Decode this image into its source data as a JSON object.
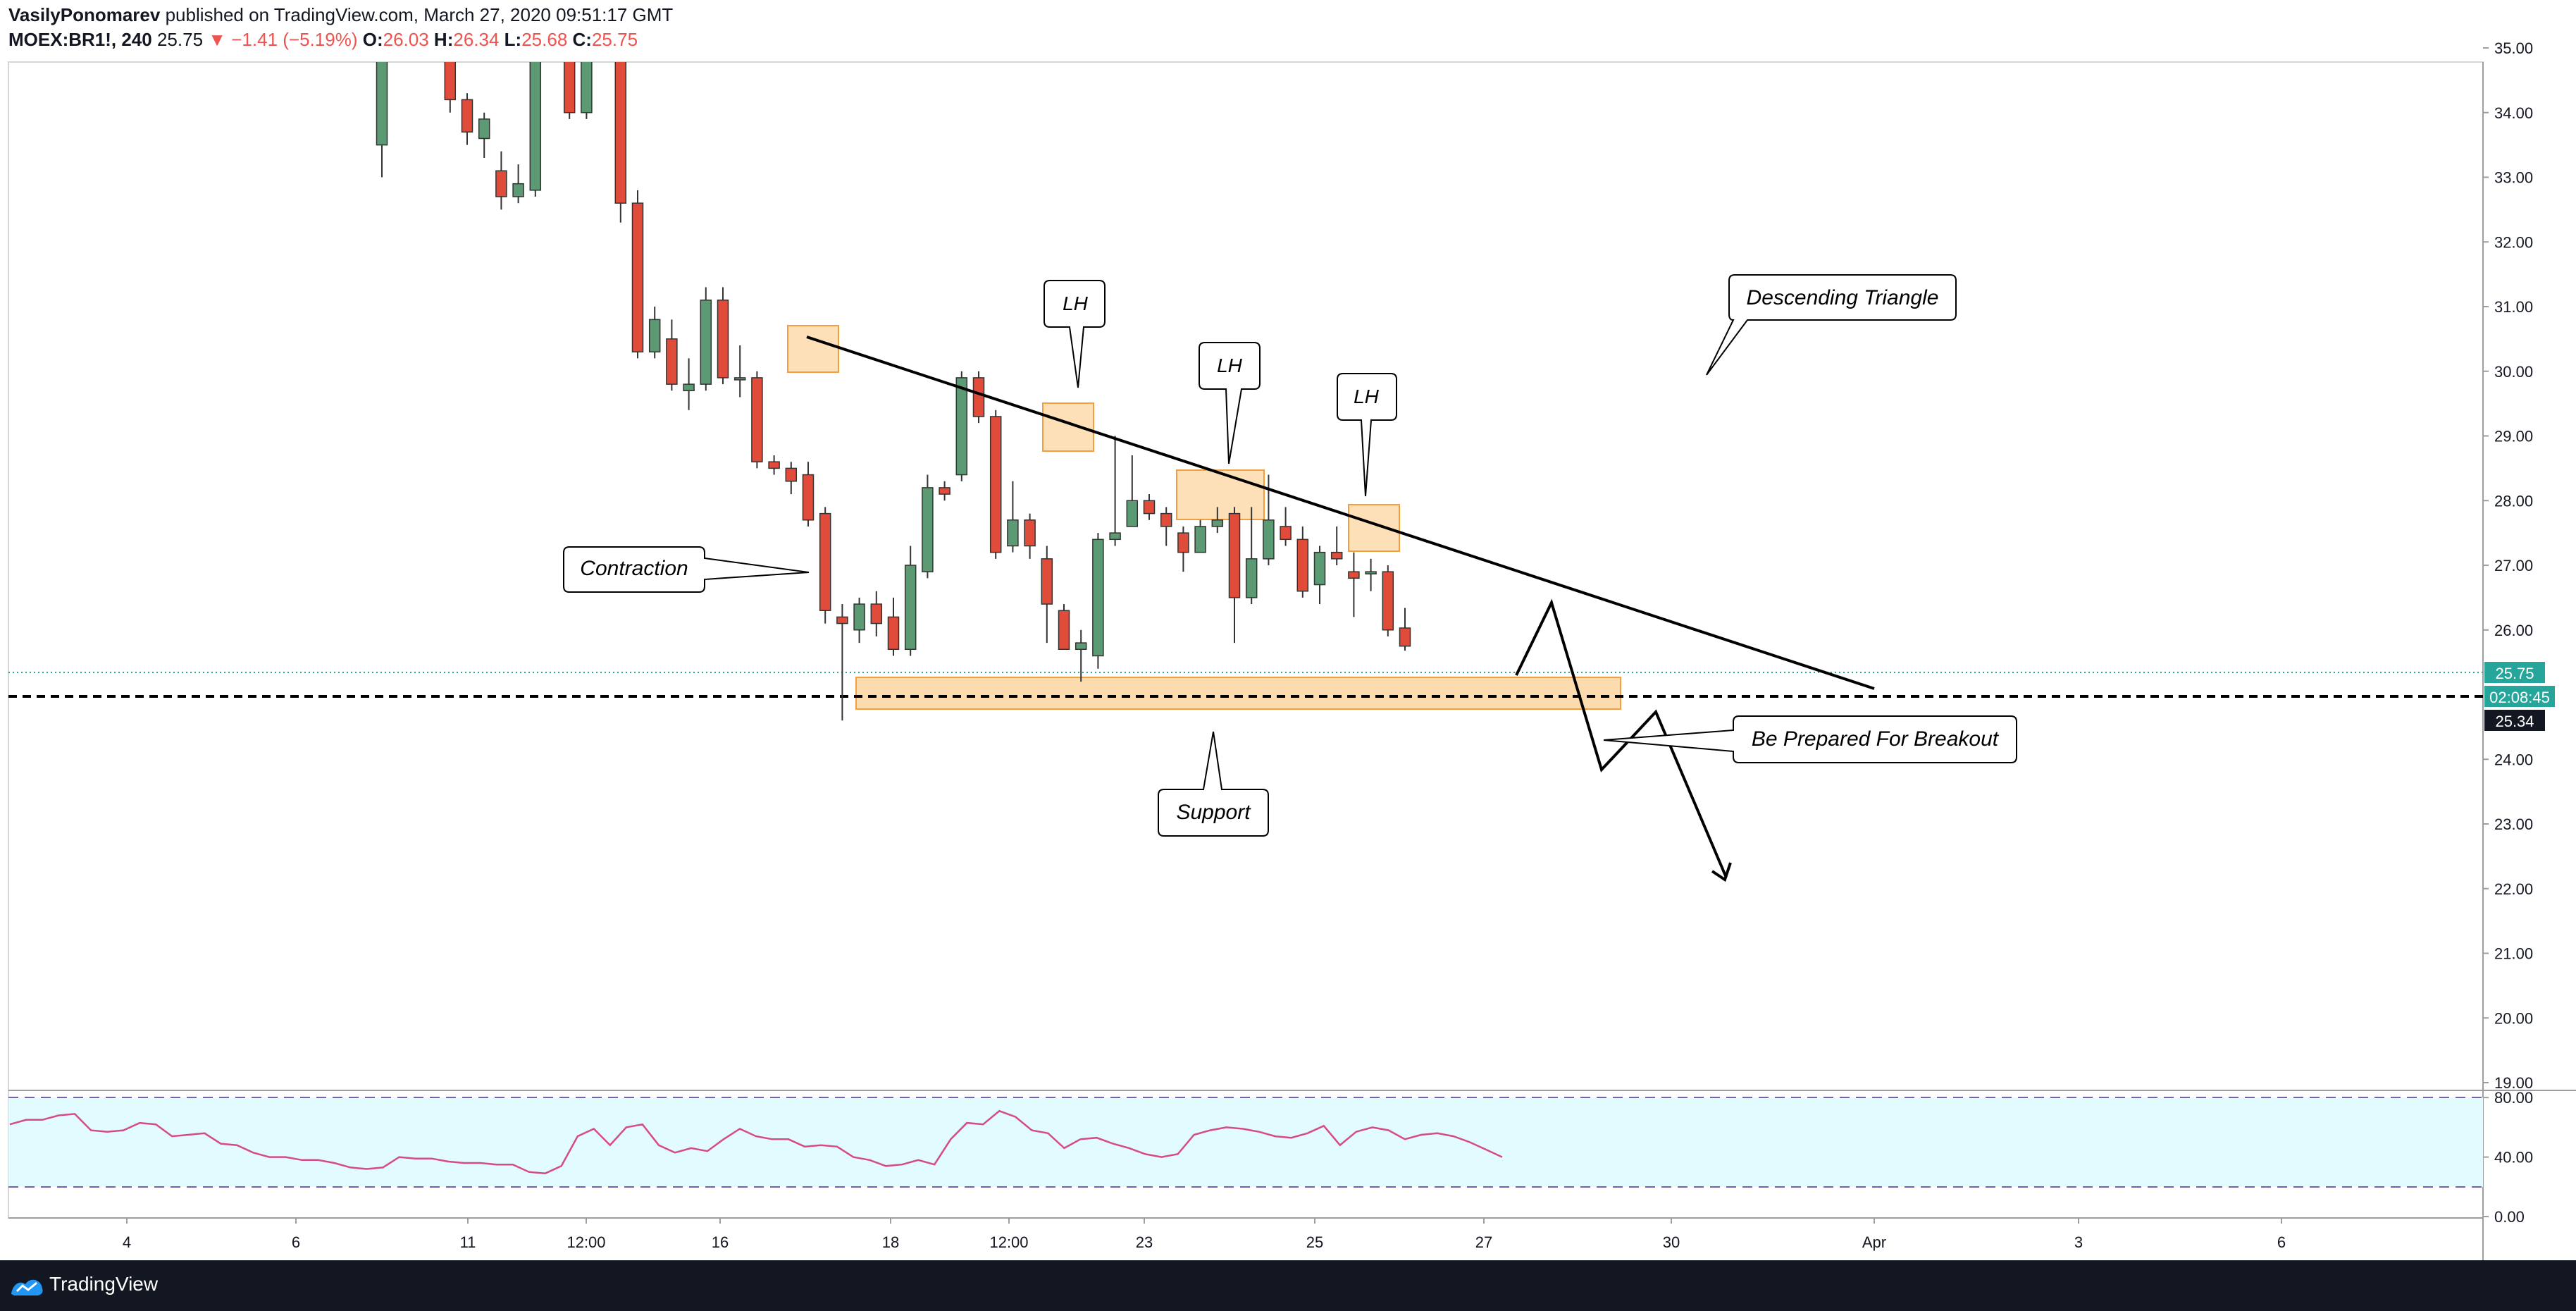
{
  "header": {
    "author": "VasilyPonomarev",
    "published": "published on TradingView.com, March 27, 2020 09:51:17 GMT",
    "symbol": "MOEX:BR1!, 240",
    "last": "25.75",
    "change_arrow": "▼",
    "change": "−1.41 (−5.19%)",
    "o_label": "O:",
    "o_value": "26.03",
    "h_label": "H:",
    "h_value": "26.34",
    "l_label": "L:",
    "l_value": "25.68",
    "c_label": "C:",
    "c_value": "25.75"
  },
  "footer": {
    "brand": "TradingView"
  },
  "colors": {
    "up": "#5b9a73",
    "down": "#e04b3a",
    "zone_fill": "#fcd6a0",
    "zone_stroke": "#f0a040",
    "rsi_line": "#d64a8a",
    "rsi_band": "#e1fbff",
    "price_tag": "#26a69a",
    "current_tag": "#131722"
  },
  "chart_data": {
    "type": "candlestick",
    "y_range": [
      19.0,
      35.7
    ],
    "y_ticks": [
      "35.00",
      "34.00",
      "33.00",
      "32.00",
      "31.00",
      "30.00",
      "29.00",
      "28.00",
      "27.00",
      "26.00",
      "24.00",
      "23.00",
      "22.00",
      "21.00",
      "20.00",
      "19.00"
    ],
    "x_labels": [
      "4",
      "6",
      "11",
      "12:00",
      "16",
      "18",
      "12:00",
      "23",
      "25",
      "27",
      "30",
      "Apr",
      "3",
      "6"
    ],
    "candles": [
      [
        33.5,
        35.9,
        36.0,
        33.0
      ],
      [
        35.9,
        35.6,
        36.0,
        35.0
      ],
      [
        35.6,
        35.8,
        36.0,
        35.4
      ],
      [
        35.8,
        35.4,
        36.0,
        35.3
      ],
      [
        35.4,
        34.2,
        35.7,
        34.0
      ],
      [
        34.2,
        33.7,
        34.3,
        33.5
      ],
      [
        33.6,
        33.9,
        34.0,
        33.3
      ],
      [
        33.1,
        32.7,
        33.4,
        32.5
      ],
      [
        32.7,
        32.9,
        33.2,
        32.6
      ],
      [
        32.8,
        35.3,
        35.5,
        32.7
      ],
      [
        35.0,
        35.3,
        35.6,
        34.8
      ],
      [
        35.3,
        34.0,
        35.9,
        33.9
      ],
      [
        34.0,
        35.0,
        35.3,
        33.9
      ],
      [
        35.1,
        35.0,
        35.3,
        34.8
      ],
      [
        35.0,
        32.6,
        35.1,
        32.3
      ],
      [
        32.6,
        30.3,
        32.8,
        30.2
      ],
      [
        30.3,
        30.8,
        31.0,
        30.2
      ],
      [
        30.5,
        29.8,
        30.8,
        29.7
      ],
      [
        29.7,
        29.8,
        30.2,
        29.4
      ],
      [
        29.8,
        31.1,
        31.3,
        29.7
      ],
      [
        31.1,
        29.9,
        31.3,
        29.8
      ],
      [
        29.9,
        29.9,
        30.4,
        29.6
      ],
      [
        29.9,
        28.6,
        30.0,
        28.5
      ],
      [
        28.6,
        28.5,
        28.7,
        28.4
      ],
      [
        28.5,
        28.3,
        28.6,
        28.1
      ],
      [
        28.4,
        27.7,
        28.6,
        27.6
      ],
      [
        27.8,
        26.3,
        27.9,
        26.1
      ],
      [
        26.2,
        26.1,
        26.4,
        24.6
      ],
      [
        26.0,
        26.4,
        26.5,
        25.8
      ],
      [
        26.4,
        26.1,
        26.6,
        25.9
      ],
      [
        26.2,
        25.7,
        26.5,
        25.6
      ],
      [
        25.7,
        27.0,
        27.3,
        25.6
      ],
      [
        26.9,
        28.2,
        28.4,
        26.8
      ],
      [
        28.2,
        28.1,
        28.3,
        28.0
      ],
      [
        28.4,
        29.9,
        30.0,
        28.3
      ],
      [
        29.9,
        29.3,
        30.0,
        29.2
      ],
      [
        29.3,
        27.2,
        29.4,
        27.1
      ],
      [
        27.3,
        27.7,
        28.3,
        27.2
      ],
      [
        27.7,
        27.3,
        27.8,
        27.1
      ],
      [
        27.1,
        26.4,
        27.3,
        25.8
      ],
      [
        26.3,
        25.7,
        26.4,
        25.7
      ],
      [
        25.7,
        25.8,
        26.0,
        25.2
      ],
      [
        25.6,
        27.4,
        27.5,
        25.4
      ],
      [
        27.4,
        27.5,
        29.0,
        27.3
      ],
      [
        27.6,
        28.0,
        28.7,
        27.6
      ],
      [
        28.0,
        27.8,
        28.1,
        27.7
      ],
      [
        27.8,
        27.6,
        27.9,
        27.3
      ],
      [
        27.5,
        27.2,
        27.6,
        26.9
      ],
      [
        27.2,
        27.6,
        27.7,
        27.2
      ],
      [
        27.6,
        27.7,
        27.9,
        27.5
      ],
      [
        27.8,
        26.5,
        27.9,
        25.8
      ],
      [
        26.5,
        27.1,
        27.9,
        26.4
      ],
      [
        27.1,
        27.7,
        28.4,
        27.0
      ],
      [
        27.6,
        27.4,
        27.9,
        27.3
      ],
      [
        27.4,
        26.6,
        27.6,
        26.5
      ],
      [
        26.7,
        27.2,
        27.3,
        26.4
      ],
      [
        27.2,
        27.1,
        27.6,
        27.0
      ],
      [
        26.9,
        26.8,
        27.2,
        26.2
      ],
      [
        26.9,
        26.9,
        27.1,
        26.6
      ],
      [
        26.9,
        26.0,
        27.0,
        25.9
      ],
      [
        26.03,
        25.75,
        26.34,
        25.68
      ]
    ],
    "last_price": "25.75",
    "countdown": "02:08:45",
    "level_price": "25.34",
    "annotations": {
      "lh": [
        "LH",
        "LH",
        "LH"
      ],
      "descending_triangle": "Descending Triangle",
      "contraction": "Contraction",
      "support": "Support",
      "breakout": "Be Prepared For Breakout"
    },
    "rsi": {
      "y_ticks": [
        "80.00",
        "40.00",
        "0.00"
      ],
      "upper": 80,
      "lower": 20,
      "values": [
        62,
        65,
        65,
        68,
        69,
        58,
        57,
        58,
        63,
        62,
        54,
        55,
        56,
        49,
        48,
        43,
        40,
        40,
        38,
        38,
        36,
        33,
        32,
        33,
        40,
        39,
        39,
        37,
        36,
        36,
        35,
        35,
        30,
        29,
        34,
        54,
        59,
        48,
        60,
        62,
        48,
        43,
        46,
        44,
        52,
        59,
        54,
        52,
        52,
        47,
        48,
        47,
        40,
        38,
        34,
        35,
        38,
        35,
        52,
        63,
        62,
        71,
        67,
        58,
        56,
        46,
        52,
        53,
        49,
        46,
        42,
        40,
        42,
        55,
        58,
        60,
        59,
        57,
        54,
        53,
        56,
        61,
        48,
        57,
        60,
        58,
        52,
        55,
        56,
        54,
        50,
        45,
        40
      ]
    }
  }
}
